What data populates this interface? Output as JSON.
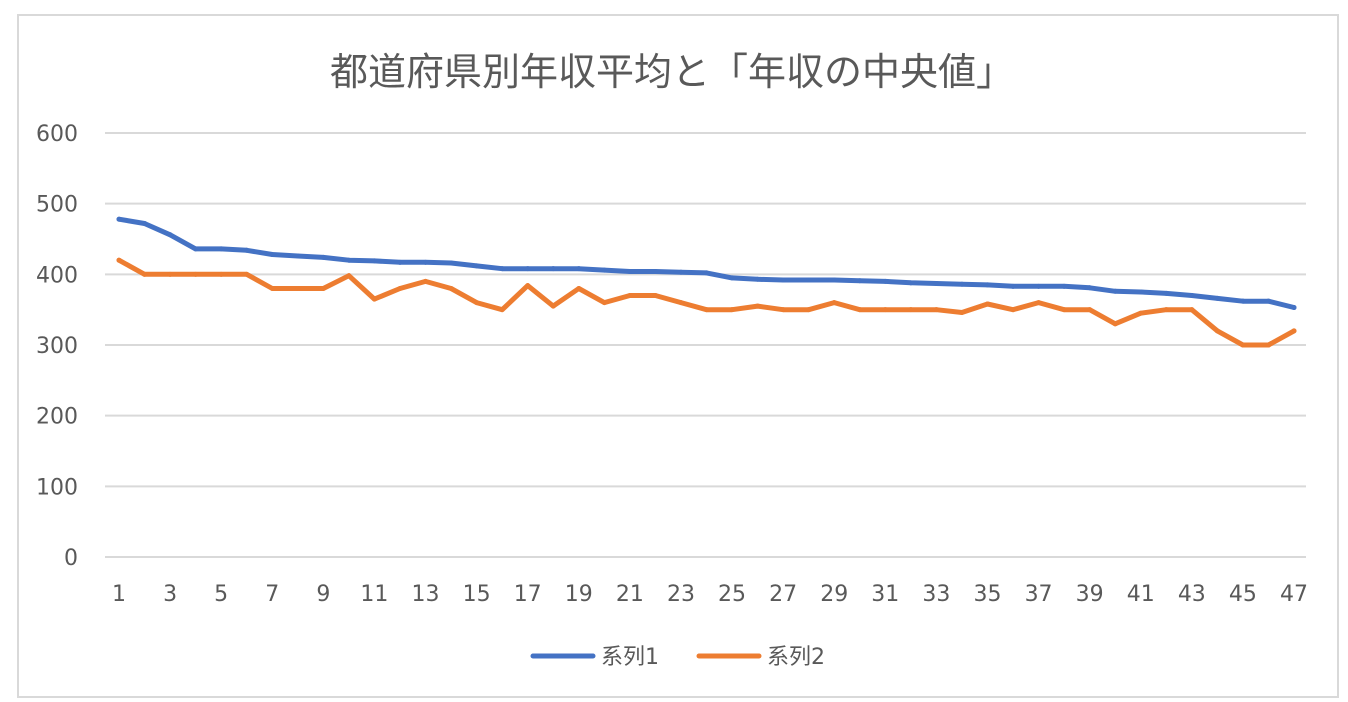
{
  "chart_data": {
    "type": "line",
    "title": "都道府県別年収平均と「年収の中央値」",
    "xlabel": "",
    "ylabel": "",
    "x": [
      1,
      2,
      3,
      4,
      5,
      6,
      7,
      8,
      9,
      10,
      11,
      12,
      13,
      14,
      15,
      16,
      17,
      18,
      19,
      20,
      21,
      22,
      23,
      24,
      25,
      26,
      27,
      28,
      29,
      30,
      31,
      32,
      33,
      34,
      35,
      36,
      37,
      38,
      39,
      40,
      41,
      42,
      43,
      44,
      45,
      46,
      47
    ],
    "x_tick_labels": [
      "1",
      "3",
      "5",
      "7",
      "9",
      "11",
      "13",
      "15",
      "17",
      "19",
      "21",
      "23",
      "25",
      "27",
      "29",
      "31",
      "33",
      "35",
      "37",
      "39",
      "41",
      "43",
      "45",
      "47"
    ],
    "ylim": [
      0,
      600
    ],
    "y_ticks": [
      0,
      100,
      200,
      300,
      400,
      500,
      600
    ],
    "grid": true,
    "legend_position": "bottom",
    "series": [
      {
        "name": "系列1",
        "color": "#4472c4",
        "values": [
          478,
          472,
          456,
          436,
          436,
          434,
          428,
          426,
          424,
          420,
          419,
          417,
          417,
          416,
          412,
          408,
          408,
          408,
          408,
          406,
          404,
          404,
          403,
          402,
          395,
          393,
          392,
          392,
          392,
          391,
          390,
          388,
          387,
          386,
          385,
          383,
          383,
          383,
          381,
          376,
          375,
          373,
          370,
          366,
          362,
          362,
          353
        ]
      },
      {
        "name": "系列2",
        "color": "#ed7d31",
        "values": [
          420,
          400,
          400,
          400,
          400,
          400,
          380,
          380,
          380,
          398,
          365,
          380,
          390,
          380,
          360,
          350,
          384,
          355,
          380,
          360,
          370,
          370,
          360,
          350,
          350,
          355,
          350,
          350,
          360,
          350,
          350,
          350,
          350,
          346,
          358,
          350,
          360,
          350,
          350,
          330,
          345,
          350,
          350,
          320,
          300,
          300,
          320
        ]
      }
    ]
  }
}
